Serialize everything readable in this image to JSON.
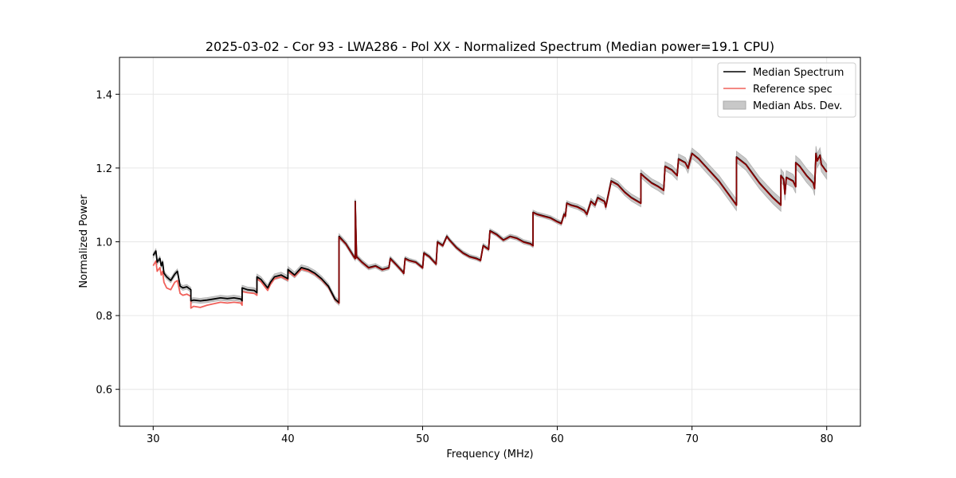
{
  "chart_data": {
    "type": "line",
    "title": "2025-03-02 - Cor 93 - LWA286 - Pol XX - Normalized Spectrum (Median power=19.1 CPU)",
    "xlabel": "Frequency (MHz)",
    "ylabel": "Normalized Power",
    "xlim": [
      27.5,
      82.5
    ],
    "ylim": [
      0.5,
      1.5
    ],
    "xticks": [
      30,
      40,
      50,
      60,
      70,
      80
    ],
    "yticks": [
      0.6,
      0.8,
      1.0,
      1.2,
      1.4
    ],
    "xtick_labels": [
      "30",
      "40",
      "50",
      "60",
      "70",
      "80"
    ],
    "ytick_labels": [
      "0.6",
      "0.8",
      "1.0",
      "1.2",
      "1.4"
    ],
    "grid": true,
    "legend_position": "top-right",
    "legend": [
      "Median Spectrum",
      "Reference spec",
      "Median Abs. Dev."
    ],
    "colors": {
      "median": "#000000",
      "reference": "#f0605a",
      "overlap": "#8b0000",
      "mad": "#c8c8c8",
      "grid": "#e6e6e6"
    },
    "series": [
      {
        "name": "Median Spectrum",
        "x": [
          30.0,
          30.2,
          30.3,
          30.5,
          30.6,
          30.7,
          30.8,
          31.0,
          31.3,
          31.6,
          31.8,
          32.0,
          32.2,
          32.5,
          32.8,
          32.8,
          33.0,
          33.5,
          34.0,
          34.5,
          35.0,
          35.5,
          36.0,
          36.5,
          36.6,
          36.6,
          37.0,
          37.5,
          37.7,
          37.7,
          38.0,
          38.5,
          38.7,
          39.0,
          39.5,
          40.0,
          40.0,
          40.5,
          41.0,
          41.5,
          42.0,
          42.5,
          43.0,
          43.5,
          43.8,
          43.8,
          44.3,
          44.9,
          45.0,
          45.0,
          45.1,
          45.5,
          46.0,
          46.5,
          47.0,
          47.5,
          47.6,
          48.0,
          48.5,
          48.6,
          48.7,
          49.0,
          49.5,
          50.0,
          50.1,
          50.5,
          51.0,
          51.1,
          51.5,
          51.8,
          52.0,
          52.5,
          53.0,
          53.5,
          54.0,
          54.3,
          54.5,
          54.9,
          55.0,
          55.5,
          56.0,
          56.5,
          57.0,
          57.5,
          58.0,
          58.2,
          58.2,
          58.5,
          59.0,
          59.5,
          60.0,
          60.3,
          60.5,
          60.6,
          60.7,
          61.0,
          61.5,
          62.0,
          62.2,
          62.5,
          62.8,
          63.0,
          63.5,
          63.6,
          64.0,
          64.5,
          65.0,
          65.5,
          66.2,
          66.2,
          66.5,
          67.0,
          67.5,
          67.9,
          68.0,
          68.5,
          68.9,
          69.0,
          69.5,
          69.7,
          70.0,
          70.5,
          71.0,
          71.5,
          72.0,
          72.5,
          73.0,
          73.3,
          73.3,
          74.0,
          74.5,
          75.0,
          75.5,
          76.0,
          76.6,
          76.6,
          76.8,
          76.9,
          77.0,
          77.5,
          77.7,
          77.7,
          78.0,
          78.5,
          79.0,
          79.1,
          79.2,
          79.3,
          79.5,
          79.6,
          80.0
        ],
        "values": [
          0.963,
          0.975,
          0.945,
          0.955,
          0.935,
          0.945,
          0.915,
          0.905,
          0.895,
          0.912,
          0.92,
          0.88,
          0.875,
          0.878,
          0.87,
          0.84,
          0.842,
          0.84,
          0.842,
          0.845,
          0.848,
          0.846,
          0.848,
          0.845,
          0.84,
          0.875,
          0.87,
          0.868,
          0.862,
          0.905,
          0.898,
          0.875,
          0.89,
          0.905,
          0.91,
          0.9,
          0.925,
          0.91,
          0.93,
          0.925,
          0.915,
          0.9,
          0.88,
          0.845,
          0.835,
          1.015,
          0.995,
          0.96,
          0.955,
          1.11,
          0.96,
          0.945,
          0.93,
          0.935,
          0.925,
          0.93,
          0.955,
          0.94,
          0.92,
          0.915,
          0.955,
          0.95,
          0.945,
          0.93,
          0.97,
          0.96,
          0.94,
          1.0,
          0.99,
          1.015,
          1.005,
          0.985,
          0.97,
          0.96,
          0.955,
          0.95,
          0.99,
          0.98,
          1.03,
          1.02,
          1.005,
          1.015,
          1.01,
          1.0,
          0.995,
          0.99,
          1.08,
          1.075,
          1.07,
          1.065,
          1.055,
          1.05,
          1.075,
          1.07,
          1.105,
          1.1,
          1.095,
          1.085,
          1.075,
          1.11,
          1.1,
          1.12,
          1.11,
          1.095,
          1.165,
          1.155,
          1.135,
          1.12,
          1.105,
          1.185,
          1.175,
          1.16,
          1.15,
          1.14,
          1.205,
          1.195,
          1.18,
          1.225,
          1.215,
          1.2,
          1.24,
          1.225,
          1.205,
          1.185,
          1.165,
          1.14,
          1.115,
          1.1,
          1.23,
          1.21,
          1.185,
          1.16,
          1.14,
          1.12,
          1.1,
          1.18,
          1.17,
          1.13,
          1.175,
          1.165,
          1.15,
          1.215,
          1.205,
          1.18,
          1.16,
          1.145,
          1.24,
          1.22,
          1.235,
          1.21,
          1.19
        ]
      },
      {
        "name": "Reference spec",
        "x": [
          30.0,
          30.2,
          30.3,
          30.5,
          30.6,
          30.7,
          30.8,
          31.0,
          31.3,
          31.6,
          31.8,
          32.0,
          32.2,
          32.5,
          32.8,
          32.8,
          33.0,
          33.5,
          34.0,
          34.5,
          35.0,
          35.5,
          36.0,
          36.5,
          36.6,
          36.6,
          37.0,
          37.5,
          37.7,
          37.7,
          38.0,
          38.5,
          38.7,
          39.0,
          39.5,
          40.0,
          40.0,
          40.5,
          41.0,
          41.5,
          42.0,
          42.5,
          43.0,
          43.5,
          43.8,
          43.8,
          44.3,
          44.9,
          45.0,
          45.0,
          45.1,
          45.5,
          46.0,
          46.5,
          47.0,
          47.5,
          47.6,
          48.0,
          48.5,
          48.6,
          48.7,
          49.0,
          49.5,
          50.0,
          50.1,
          50.5,
          51.0,
          51.1,
          51.5,
          51.8,
          52.0,
          52.5,
          53.0,
          53.5,
          54.0,
          54.3,
          54.5,
          54.9,
          55.0,
          55.5,
          56.0,
          56.5,
          57.0,
          57.5,
          58.0,
          58.2,
          58.2,
          58.5,
          59.0,
          59.5,
          60.0,
          60.3,
          60.5,
          60.6,
          60.7,
          61.0,
          61.5,
          62.0,
          62.2,
          62.5,
          62.8,
          63.0,
          63.5,
          63.6,
          64.0,
          64.5,
          65.0,
          65.5,
          66.2,
          66.2,
          66.5,
          67.0,
          67.5,
          67.9,
          68.0,
          68.5,
          68.9,
          69.0,
          69.5,
          69.7,
          70.0,
          70.5,
          71.0,
          71.5,
          72.0,
          72.5,
          73.0,
          73.3,
          73.3,
          74.0,
          74.5,
          75.0,
          75.5,
          76.0,
          76.6,
          76.6,
          76.8,
          76.9,
          77.0,
          77.5,
          77.7,
          77.7,
          78.0,
          78.5,
          79.0,
          79.1,
          79.2,
          79.3,
          79.5,
          79.6,
          80.0
        ],
        "values": [
          0.935,
          0.948,
          0.92,
          0.93,
          0.91,
          0.92,
          0.89,
          0.875,
          0.87,
          0.89,
          0.895,
          0.86,
          0.855,
          0.858,
          0.852,
          0.82,
          0.825,
          0.822,
          0.828,
          0.832,
          0.836,
          0.834,
          0.836,
          0.834,
          0.828,
          0.865,
          0.862,
          0.86,
          0.855,
          0.9,
          0.892,
          0.868,
          0.884,
          0.9,
          0.905,
          0.896,
          0.92,
          0.906,
          0.926,
          0.921,
          0.912,
          0.897,
          0.877,
          0.843,
          0.833,
          1.013,
          0.994,
          0.959,
          0.954,
          0.954,
          0.959,
          0.944,
          0.929,
          0.934,
          0.924,
          0.929,
          0.954,
          0.939,
          0.919,
          0.914,
          0.954,
          0.949,
          0.944,
          0.929,
          0.969,
          0.959,
          0.939,
          0.999,
          0.989,
          1.014,
          1.004,
          0.984,
          0.969,
          0.959,
          0.954,
          0.949,
          0.989,
          0.979,
          1.029,
          1.019,
          1.004,
          1.014,
          1.009,
          0.999,
          0.994,
          0.989,
          1.079,
          1.074,
          1.069,
          1.064,
          1.054,
          1.049,
          1.074,
          1.069,
          1.104,
          1.099,
          1.094,
          1.084,
          1.074,
          1.109,
          1.099,
          1.119,
          1.109,
          1.094,
          1.164,
          1.154,
          1.134,
          1.119,
          1.104,
          1.184,
          1.174,
          1.159,
          1.149,
          1.139,
          1.204,
          1.194,
          1.179,
          1.224,
          1.214,
          1.199,
          1.239,
          1.224,
          1.204,
          1.184,
          1.164,
          1.139,
          1.114,
          1.099,
          1.229,
          1.209,
          1.184,
          1.159,
          1.139,
          1.119,
          1.099,
          1.179,
          1.169,
          1.129,
          1.174,
          1.164,
          1.149,
          1.214,
          1.204,
          1.179,
          1.159,
          1.144,
          1.239,
          1.219,
          1.234,
          1.209,
          1.189
        ]
      }
    ],
    "mad_halfwidth": {
      "x": [
        30,
        40,
        50,
        60,
        66,
        70,
        75,
        80
      ],
      "values": [
        0.006,
        0.008,
        0.005,
        0.006,
        0.01,
        0.014,
        0.016,
        0.02
      ]
    }
  }
}
